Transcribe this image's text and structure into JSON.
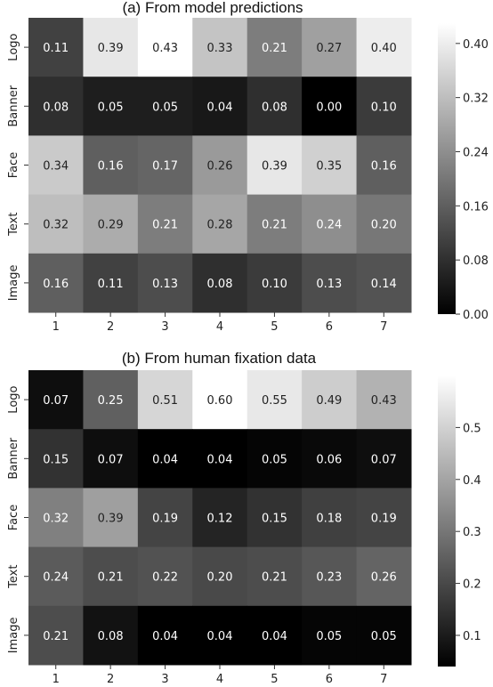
{
  "chart_data": [
    {
      "type": "heatmap",
      "title": "(a) From model predictions",
      "xlabel": "",
      "ylabel": "",
      "x_categories": [
        "1",
        "2",
        "3",
        "4",
        "5",
        "6",
        "7"
      ],
      "y_categories": [
        "Logo",
        "Banner",
        "Face",
        "Text",
        "Image"
      ],
      "values": [
        [
          0.11,
          0.39,
          0.43,
          0.33,
          0.21,
          0.27,
          0.4
        ],
        [
          0.08,
          0.05,
          0.05,
          0.04,
          0.08,
          0.0,
          0.1
        ],
        [
          0.34,
          0.16,
          0.17,
          0.26,
          0.39,
          0.35,
          0.16
        ],
        [
          0.32,
          0.29,
          0.21,
          0.28,
          0.21,
          0.24,
          0.2
        ],
        [
          0.16,
          0.11,
          0.13,
          0.08,
          0.1,
          0.13,
          0.14
        ]
      ],
      "value_labels": [
        [
          "0.11",
          "0.39",
          "0.43",
          "0.33",
          "0.21",
          "0.27",
          "0.40"
        ],
        [
          "0.08",
          "0.05",
          "0.05",
          "0.04",
          "0.08",
          "0.00",
          "0.10"
        ],
        [
          "0.34",
          "0.16",
          "0.17",
          "0.26",
          "0.39",
          "0.35",
          "0.16"
        ],
        [
          "0.32",
          "0.29",
          "0.21",
          "0.28",
          "0.21",
          "0.24",
          "0.20"
        ],
        [
          "0.16",
          "0.11",
          "0.13",
          "0.08",
          "0.10",
          "0.13",
          "0.14"
        ]
      ],
      "colorscale": "gray",
      "vmin": 0.0,
      "vmax": 0.43,
      "colorbar_ticks": [
        0.0,
        0.08,
        0.16,
        0.24,
        0.32,
        0.4
      ],
      "colorbar_tick_labels": [
        "0.00",
        "0.08",
        "0.16",
        "0.24",
        "0.32",
        "0.40"
      ]
    },
    {
      "type": "heatmap",
      "title": "(b) From human fixation data",
      "xlabel": "",
      "ylabel": "",
      "x_categories": [
        "1",
        "2",
        "3",
        "4",
        "5",
        "6",
        "7"
      ],
      "y_categories": [
        "Logo",
        "Banner",
        "Face",
        "Text",
        "Image"
      ],
      "values": [
        [
          0.07,
          0.25,
          0.51,
          0.6,
          0.55,
          0.49,
          0.43
        ],
        [
          0.15,
          0.07,
          0.04,
          0.04,
          0.05,
          0.06,
          0.07
        ],
        [
          0.32,
          0.39,
          0.19,
          0.12,
          0.15,
          0.18,
          0.19
        ],
        [
          0.24,
          0.21,
          0.22,
          0.2,
          0.21,
          0.23,
          0.26
        ],
        [
          0.21,
          0.08,
          0.04,
          0.04,
          0.04,
          0.05,
          0.05
        ]
      ],
      "value_labels": [
        [
          "0.07",
          "0.25",
          "0.51",
          "0.60",
          "0.55",
          "0.49",
          "0.43"
        ],
        [
          "0.15",
          "0.07",
          "0.04",
          "0.04",
          "0.05",
          "0.06",
          "0.07"
        ],
        [
          "0.32",
          "0.39",
          "0.19",
          "0.12",
          "0.15",
          "0.18",
          "0.19"
        ],
        [
          "0.24",
          "0.21",
          "0.22",
          "0.20",
          "0.21",
          "0.23",
          "0.26"
        ],
        [
          "0.21",
          "0.08",
          "0.04",
          "0.04",
          "0.04",
          "0.05",
          "0.05"
        ]
      ],
      "colorscale": "gray",
      "vmin": 0.04,
      "vmax": 0.6,
      "colorbar_ticks": [
        0.1,
        0.2,
        0.3,
        0.4,
        0.5
      ],
      "colorbar_tick_labels": [
        "0.1",
        "0.2",
        "0.3",
        "0.4",
        "0.5"
      ]
    }
  ]
}
